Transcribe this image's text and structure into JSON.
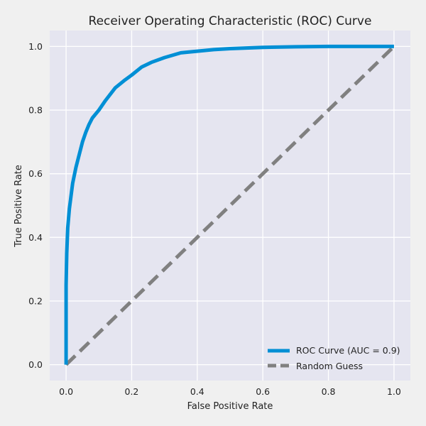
{
  "chart_data": {
    "type": "line",
    "title": "Receiver Operating Characteristic (ROC) Curve",
    "xlabel": "False Positive Rate",
    "ylabel": "True Positive Rate",
    "xlim": [
      -0.05,
      1.05
    ],
    "ylim": [
      -0.05,
      1.05
    ],
    "x_ticks": [
      0.0,
      0.2,
      0.4,
      0.6,
      0.8,
      1.0
    ],
    "y_ticks": [
      0.0,
      0.2,
      0.4,
      0.6,
      0.8,
      1.0
    ],
    "x_tick_labels": [
      "0.0",
      "0.2",
      "0.4",
      "0.6",
      "0.8",
      "1.0"
    ],
    "y_tick_labels": [
      "0.0",
      "0.2",
      "0.4",
      "0.6",
      "0.8",
      "1.0"
    ],
    "grid": true,
    "legend_position": "lower-right",
    "series": [
      {
        "name": "ROC Curve (AUC = 0.9)",
        "color": "#008fd5",
        "style": "solid",
        "x": [
          0.0,
          0.0,
          0.002,
          0.005,
          0.01,
          0.015,
          0.02,
          0.03,
          0.04,
          0.05,
          0.06,
          0.07,
          0.08,
          0.1,
          0.12,
          0.15,
          0.18,
          0.2,
          0.23,
          0.26,
          0.3,
          0.35,
          0.4,
          0.45,
          0.5,
          0.6,
          0.7,
          0.8,
          0.9,
          1.0
        ],
        "y": [
          0.0,
          0.25,
          0.35,
          0.43,
          0.49,
          0.53,
          0.57,
          0.62,
          0.66,
          0.7,
          0.73,
          0.755,
          0.775,
          0.8,
          0.83,
          0.87,
          0.895,
          0.91,
          0.935,
          0.95,
          0.965,
          0.98,
          0.985,
          0.99,
          0.993,
          0.997,
          0.999,
          1.0,
          1.0,
          1.0
        ]
      },
      {
        "name": "Random Guess",
        "color": "#808080",
        "style": "dashed",
        "x": [
          0.0,
          1.0
        ],
        "y": [
          0.0,
          1.0
        ]
      }
    ]
  }
}
